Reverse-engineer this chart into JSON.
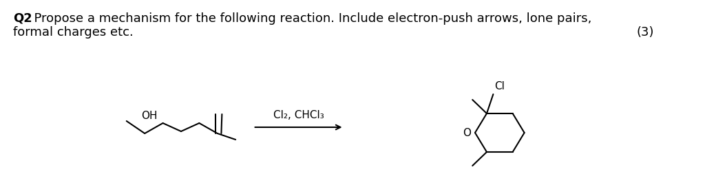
{
  "background_color": "#ffffff",
  "title_bold": "Q2",
  "title_dot": ". ",
  "title_text": "Propose a mechanism for the following reaction. Include electron-push arrows, lone pairs,",
  "line2_text": "formal charges etc.",
  "line2_right": "(3)",
  "reagent_text": "Cl₂, CHCl₃",
  "oh_label": "OH",
  "cl_label": "Cl",
  "o_label": "O",
  "font_size_title": 13,
  "font_size_chem": 11,
  "fig_width": 10.24,
  "fig_height": 2.85
}
